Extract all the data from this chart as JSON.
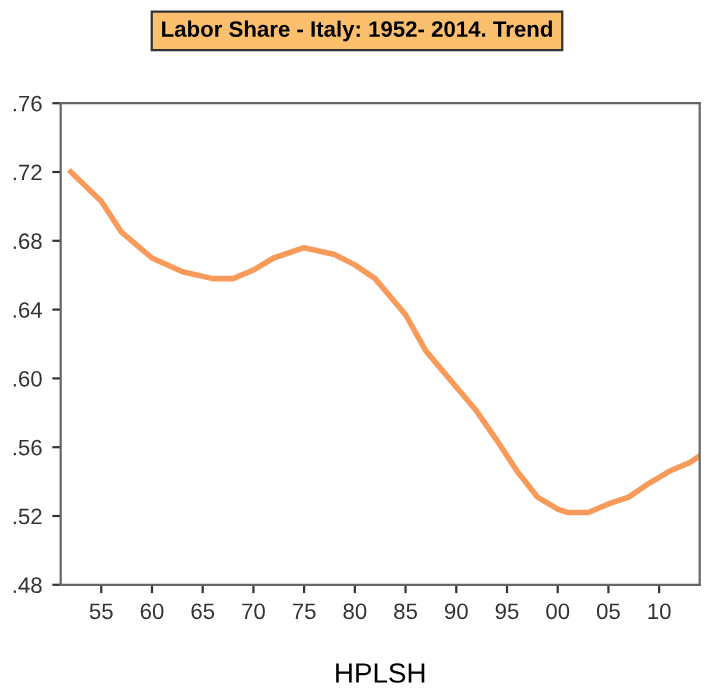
{
  "chart_data": {
    "type": "line",
    "title": "Labor Share - Italy: 1952- 2014. Trend",
    "xlabel": "HPLSH",
    "x": [
      1952,
      1955,
      1957,
      1960,
      1963,
      1966,
      1968,
      1970,
      1972,
      1975,
      1978,
      1980,
      1982,
      1985,
      1987,
      1990,
      1992,
      1994,
      1996,
      1998,
      2000,
      2001,
      2003,
      2005,
      2007,
      2009,
      2011,
      2013,
      2014
    ],
    "series": [
      {
        "color": "#f79a5a",
        "values": [
          0.72,
          0.703,
          0.685,
          0.67,
          0.662,
          0.658,
          0.658,
          0.663,
          0.67,
          0.676,
          0.672,
          0.666,
          0.658,
          0.637,
          0.616,
          0.595,
          0.581,
          0.564,
          0.546,
          0.531,
          0.524,
          0.522,
          0.522,
          0.527,
          0.531,
          0.539,
          0.546,
          0.551,
          0.555
        ]
      }
    ],
    "xlim": [
      1951,
      2014
    ],
    "ylim": [
      0.48,
      0.76
    ],
    "xticks": [
      {
        "value": 1955,
        "label": "55"
      },
      {
        "value": 1960,
        "label": "60"
      },
      {
        "value": 1965,
        "label": "65"
      },
      {
        "value": 1970,
        "label": "70"
      },
      {
        "value": 1975,
        "label": "75"
      },
      {
        "value": 1980,
        "label": "80"
      },
      {
        "value": 1985,
        "label": "85"
      },
      {
        "value": 1990,
        "label": "90"
      },
      {
        "value": 1995,
        "label": "95"
      },
      {
        "value": 2000,
        "label": "00"
      },
      {
        "value": 2005,
        "label": "05"
      },
      {
        "value": 2010,
        "label": "10"
      }
    ],
    "yticks": [
      {
        "value": 0.48,
        "label": ".48"
      },
      {
        "value": 0.52,
        "label": ".52"
      },
      {
        "value": 0.56,
        "label": ".56"
      },
      {
        "value": 0.6,
        "label": ".60"
      },
      {
        "value": 0.64,
        "label": ".64"
      },
      {
        "value": 0.68,
        "label": ".68"
      },
      {
        "value": 0.72,
        "label": ".72"
      },
      {
        "value": 0.76,
        "label": ".76"
      }
    ],
    "grid": false,
    "legend": false
  }
}
